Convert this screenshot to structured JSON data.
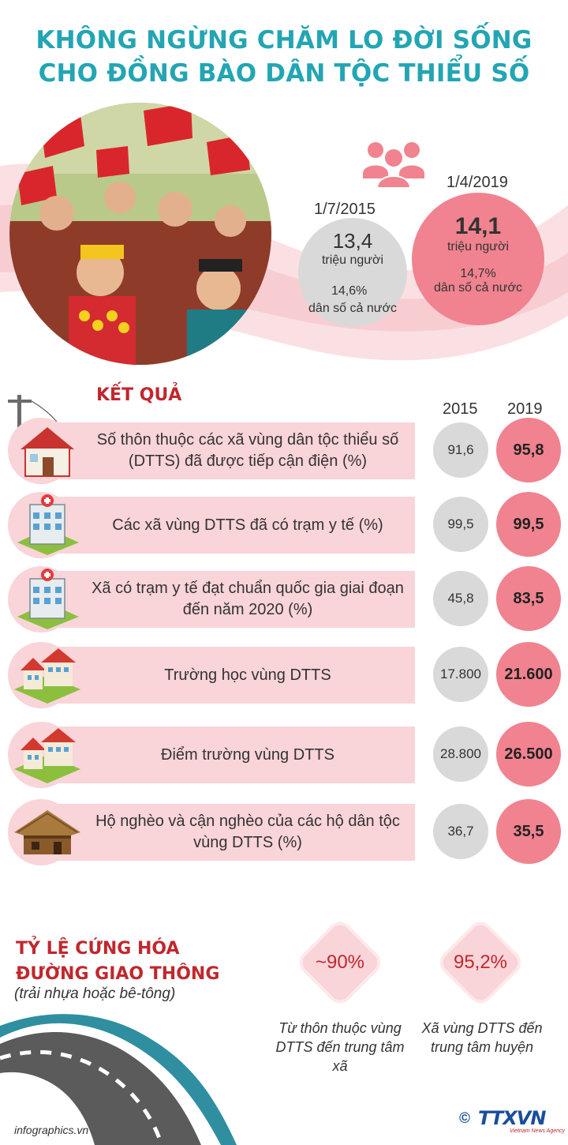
{
  "title": {
    "line1": "KHÔNG NGỪNG CHĂM LO ĐỜI SỐNG",
    "line2": "CHO ĐỒNG BÀO DÂN TỘC THIỂU SỐ"
  },
  "population": {
    "y2015": {
      "date": "1/7/2015",
      "value": "13,4",
      "unit": "triệu người",
      "percent": "14,6%",
      "percent_label": "dân số cả nước"
    },
    "y2019": {
      "date": "1/4/2019",
      "value": "14,1",
      "unit": "triệu người",
      "percent": "14,7%",
      "percent_label": "dân số cả nước"
    }
  },
  "results": {
    "heading": "KẾT QUẢ",
    "col_2015": "2015",
    "col_2019": "2019",
    "rows": [
      {
        "icon": "house-with-power-pole-icon",
        "label": "Số thôn thuộc các xã vùng dân tộc thiểu số (DTTS) đã được tiếp cận điện (%)",
        "v2015": "91,6",
        "v2019": "95,8"
      },
      {
        "icon": "medical-station-icon",
        "label": "Các xã vùng DTTS đã có trạm y tế (%)",
        "v2015": "99,5",
        "v2019": "99,5"
      },
      {
        "icon": "medical-station-icon",
        "label": "Xã có trạm y tế đạt chuẩn quốc gia giai đoạn đến năm 2020 (%)",
        "v2015": "45,8",
        "v2019": "83,5"
      },
      {
        "icon": "school-building-icon",
        "label": "Trường học vùng DTTS",
        "v2015": "17.800",
        "v2019": "21.600"
      },
      {
        "icon": "school-building-icon",
        "label": "Điểm trường vùng DTTS",
        "v2015": "28.800",
        "v2019": "26.500"
      },
      {
        "icon": "thatched-hut-icon",
        "label": "Hộ nghèo và cận nghèo của các hộ dân tộc vùng DTTS (%)",
        "v2015": "36,7",
        "v2019": "35,5"
      }
    ]
  },
  "roads": {
    "title_line1": "TỶ LỆ CỨNG HÓA",
    "title_line2": "ĐƯỜNG GIAO THÔNG",
    "subtitle": "(trải nhựa hoặc bê-tông)",
    "items": [
      {
        "value": "~90%",
        "caption": "Từ thôn thuộc vùng DTTS đến trung tâm xã"
      },
      {
        "value": "95,2%",
        "caption": "Xã vùng DTTS đến trung tâm huyện"
      }
    ]
  },
  "footer": {
    "site": "infographics.vn",
    "copyright": "©",
    "logo": "TTXVN",
    "logo_sub": "Vietnam News Agency"
  },
  "colors": {
    "title": "#23a5b3",
    "accent_red": "#c1272d",
    "pink": "#f0838f",
    "light_pink": "#f9d4d8",
    "grey": "#d9d9d9"
  }
}
